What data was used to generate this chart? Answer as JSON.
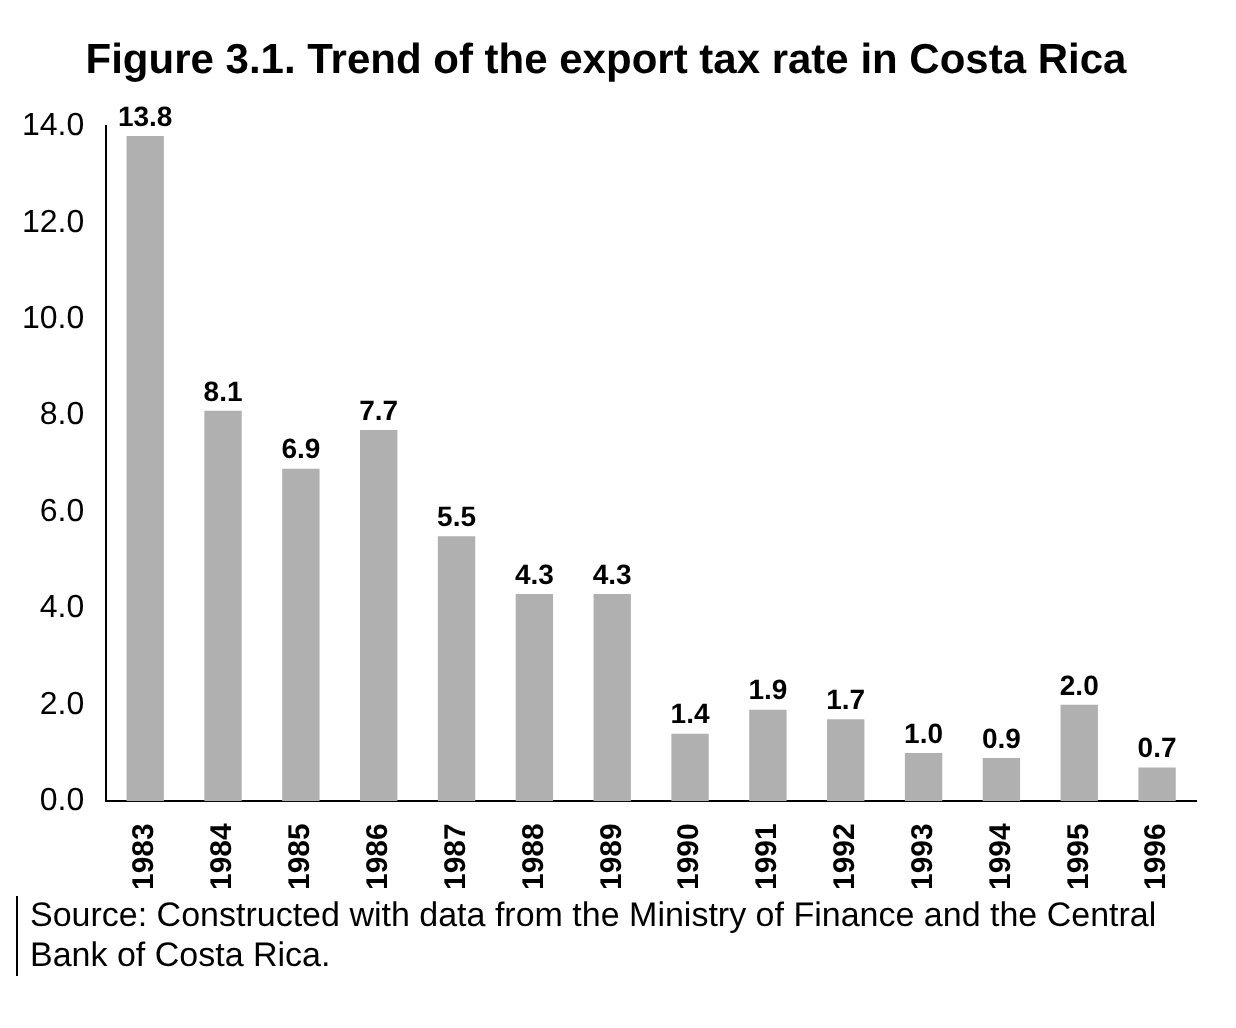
{
  "chart_data": {
    "type": "bar",
    "title": "Figure 3.1. Trend of the export tax rate in Costa Rica",
    "categories": [
      "1983",
      "1984",
      "1985",
      "1986",
      "1987",
      "1988",
      "1989",
      "1990",
      "1991",
      "1992",
      "1993",
      "1994",
      "1995",
      "1996"
    ],
    "values": [
      13.8,
      8.1,
      6.9,
      7.7,
      5.5,
      4.3,
      4.3,
      1.4,
      1.9,
      1.7,
      1.0,
      0.9,
      2.0,
      0.7
    ],
    "value_labels": [
      "13.8",
      "8.1",
      "6.9",
      "7.7",
      "5.5",
      "4.3",
      "4.3",
      "1.4",
      "1.9",
      "1.7",
      "1.0",
      "0.9",
      "2.0",
      "0.7"
    ],
    "color": "#b0b0b0",
    "ylim": [
      0,
      14
    ],
    "yticks": [
      {
        "value": 0,
        "label": "0.0"
      },
      {
        "value": 2,
        "label": "2.0"
      },
      {
        "value": 4,
        "label": "4.0"
      },
      {
        "value": 6,
        "label": "6.0"
      },
      {
        "value": 8,
        "label": "8.0"
      },
      {
        "value": 10,
        "label": "10.0"
      },
      {
        "value": 12,
        "label": "12.0"
      },
      {
        "value": 14,
        "label": "14.0"
      }
    ],
    "grid": false,
    "legend": false,
    "annotations": [
      "Source: Constructed with data from the Ministry of Finance and the Central Bank of Costa Rica."
    ]
  }
}
